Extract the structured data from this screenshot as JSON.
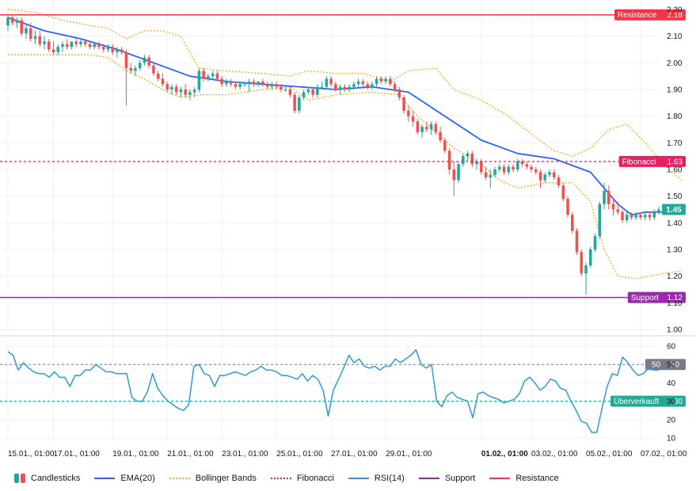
{
  "chart_data": {
    "type": "candlestick",
    "price_axis": {
      "min": 1.0,
      "max": 2.2,
      "ticks": [
        "2.20",
        "2.10",
        "2.00",
        "1.90",
        "1.80",
        "1.70",
        "1.60",
        "1.50",
        "1.40",
        "1.30",
        "1.20",
        "1.10",
        "1.00"
      ]
    },
    "rsi_axis": {
      "min": 5,
      "max": 60,
      "ticks": [
        "60",
        "50",
        "40",
        "30",
        "20",
        "10"
      ]
    },
    "x_axis_labels": [
      {
        "label": "15.01., 01:00",
        "index": 0,
        "bold": false
      },
      {
        "label": "17.01., 01:00",
        "index": 10,
        "bold": false
      },
      {
        "label": "19.01., 01:00",
        "index": 23,
        "bold": false
      },
      {
        "label": "21.01., 01:00",
        "index": 35,
        "bold": false
      },
      {
        "label": "23.01., 01:00",
        "index": 47,
        "bold": false
      },
      {
        "label": "25.01., 01:00",
        "index": 59,
        "bold": false
      },
      {
        "label": "27.01., 01:00",
        "index": 71,
        "bold": false
      },
      {
        "label": "29.01., 01:00",
        "index": 83,
        "bold": false
      },
      {
        "label": "01.02., 01:00",
        "index": 104,
        "bold": true
      },
      {
        "label": "03.02., 01:00",
        "index": 115,
        "bold": false
      },
      {
        "label": "05.02., 01:00",
        "index": 127,
        "bold": false
      },
      {
        "label": "07.02., 01:00",
        "index": 139,
        "bold": false
      }
    ],
    "candles": [
      [
        2.14,
        2.18,
        2.12,
        2.17
      ],
      [
        2.17,
        2.18,
        2.14,
        2.15
      ],
      [
        2.15,
        2.17,
        2.13,
        2.16
      ],
      [
        2.16,
        2.17,
        2.1,
        2.11
      ],
      [
        2.11,
        2.14,
        2.09,
        2.13
      ],
      [
        2.13,
        2.15,
        2.08,
        2.09
      ],
      [
        2.09,
        2.12,
        2.07,
        2.1
      ],
      [
        2.1,
        2.12,
        2.06,
        2.07
      ],
      [
        2.07,
        2.1,
        2.05,
        2.08
      ],
      [
        2.08,
        2.09,
        2.04,
        2.05
      ],
      [
        2.05,
        2.08,
        2.03,
        2.04
      ],
      [
        2.04,
        2.07,
        2.03,
        2.06
      ],
      [
        2.06,
        2.08,
        2.04,
        2.07
      ],
      [
        2.07,
        2.09,
        2.05,
        2.06
      ],
      [
        2.06,
        2.08,
        2.05,
        2.08
      ],
      [
        2.08,
        2.09,
        2.06,
        2.07
      ],
      [
        2.07,
        2.09,
        2.06,
        2.08
      ],
      [
        2.08,
        2.09,
        2.06,
        2.07
      ],
      [
        2.07,
        2.08,
        2.05,
        2.06
      ],
      [
        2.06,
        2.08,
        2.05,
        2.07
      ],
      [
        2.07,
        2.08,
        2.05,
        2.06
      ],
      [
        2.06,
        2.07,
        2.04,
        2.05
      ],
      [
        2.05,
        2.07,
        2.04,
        2.06
      ],
      [
        2.06,
        2.07,
        2.03,
        2.04
      ],
      [
        2.04,
        2.06,
        2.02,
        2.05
      ],
      [
        2.05,
        2.06,
        2.03,
        2.04
      ],
      [
        2.04,
        2.05,
        1.84,
        1.98
      ],
      [
        1.98,
        2.0,
        1.96,
        1.97
      ],
      [
        1.97,
        1.99,
        1.95,
        1.98
      ],
      [
        1.98,
        2.01,
        1.97,
        2.0
      ],
      [
        2.0,
        2.03,
        1.99,
        2.02
      ],
      [
        2.02,
        2.03,
        1.98,
        1.99
      ],
      [
        1.99,
        2.0,
        1.95,
        1.96
      ],
      [
        1.96,
        1.97,
        1.93,
        1.94
      ],
      [
        1.94,
        1.96,
        1.91,
        1.92
      ],
      [
        1.92,
        1.93,
        1.89,
        1.9
      ],
      [
        1.9,
        1.92,
        1.88,
        1.91
      ],
      [
        1.91,
        1.92,
        1.88,
        1.89
      ],
      [
        1.89,
        1.91,
        1.87,
        1.9
      ],
      [
        1.9,
        1.92,
        1.87,
        1.88
      ],
      [
        1.88,
        1.9,
        1.86,
        1.89
      ],
      [
        1.89,
        1.91,
        1.87,
        1.9
      ],
      [
        1.9,
        1.98,
        1.89,
        1.97
      ],
      [
        1.97,
        1.98,
        1.93,
        1.94
      ],
      [
        1.94,
        1.96,
        1.93,
        1.95
      ],
      [
        1.95,
        1.97,
        1.94,
        1.96
      ],
      [
        1.96,
        1.97,
        1.93,
        1.94
      ],
      [
        1.94,
        1.95,
        1.91,
        1.92
      ],
      [
        1.92,
        1.94,
        1.91,
        1.93
      ],
      [
        1.93,
        1.94,
        1.91,
        1.92
      ],
      [
        1.92,
        1.93,
        1.9,
        1.91
      ],
      [
        1.91,
        1.93,
        1.9,
        1.92
      ],
      [
        1.92,
        1.93,
        1.91,
        1.92
      ],
      [
        1.92,
        1.94,
        1.89,
        1.93
      ],
      [
        1.93,
        1.94,
        1.91,
        1.92
      ],
      [
        1.92,
        1.93,
        1.91,
        1.93
      ],
      [
        1.93,
        1.94,
        1.91,
        1.92
      ],
      [
        1.92,
        1.93,
        1.9,
        1.91
      ],
      [
        1.91,
        1.93,
        1.9,
        1.92
      ],
      [
        1.92,
        1.93,
        1.9,
        1.91
      ],
      [
        1.91,
        1.92,
        1.89,
        1.9
      ],
      [
        1.9,
        1.91,
        1.89,
        1.9
      ],
      [
        1.9,
        1.91,
        1.87,
        1.88
      ],
      [
        1.88,
        1.89,
        1.81,
        1.82
      ],
      [
        1.82,
        1.88,
        1.81,
        1.87
      ],
      [
        1.87,
        1.9,
        1.86,
        1.89
      ],
      [
        1.89,
        1.91,
        1.88,
        1.9
      ],
      [
        1.9,
        1.91,
        1.87,
        1.88
      ],
      [
        1.88,
        1.92,
        1.87,
        1.91
      ],
      [
        1.91,
        1.93,
        1.9,
        1.91
      ],
      [
        1.91,
        1.95,
        1.9,
        1.94
      ],
      [
        1.94,
        1.95,
        1.91,
        1.92
      ],
      [
        1.92,
        1.93,
        1.89,
        1.9
      ],
      [
        1.9,
        1.92,
        1.88,
        1.91
      ],
      [
        1.91,
        1.92,
        1.89,
        1.9
      ],
      [
        1.9,
        1.92,
        1.89,
        1.91
      ],
      [
        1.91,
        1.93,
        1.9,
        1.92
      ],
      [
        1.92,
        1.94,
        1.91,
        1.93
      ],
      [
        1.93,
        1.94,
        1.91,
        1.92
      ],
      [
        1.92,
        1.93,
        1.9,
        1.91
      ],
      [
        1.91,
        1.93,
        1.9,
        1.92
      ],
      [
        1.92,
        1.95,
        1.91,
        1.94
      ],
      [
        1.94,
        1.95,
        1.92,
        1.93
      ],
      [
        1.93,
        1.95,
        1.92,
        1.94
      ],
      [
        1.94,
        1.95,
        1.91,
        1.92
      ],
      [
        1.92,
        1.93,
        1.89,
        1.9
      ],
      [
        1.9,
        1.91,
        1.86,
        1.87
      ],
      [
        1.87,
        1.88,
        1.81,
        1.82
      ],
      [
        1.82,
        1.84,
        1.78,
        1.8
      ],
      [
        1.8,
        1.82,
        1.76,
        1.78
      ],
      [
        1.78,
        1.79,
        1.73,
        1.74
      ],
      [
        1.74,
        1.77,
        1.72,
        1.76
      ],
      [
        1.76,
        1.78,
        1.74,
        1.75
      ],
      [
        1.75,
        1.78,
        1.73,
        1.77
      ],
      [
        1.77,
        1.78,
        1.73,
        1.74
      ],
      [
        1.74,
        1.76,
        1.7,
        1.71
      ],
      [
        1.71,
        1.72,
        1.66,
        1.67
      ],
      [
        1.67,
        1.68,
        1.58,
        1.6
      ],
      [
        1.6,
        1.63,
        1.5,
        1.56
      ],
      [
        1.56,
        1.63,
        1.55,
        1.62
      ],
      [
        1.62,
        1.66,
        1.61,
        1.65
      ],
      [
        1.65,
        1.67,
        1.63,
        1.66
      ],
      [
        1.66,
        1.67,
        1.61,
        1.62
      ],
      [
        1.62,
        1.64,
        1.6,
        1.63
      ],
      [
        1.63,
        1.64,
        1.58,
        1.59
      ],
      [
        1.59,
        1.61,
        1.56,
        1.57
      ],
      [
        1.57,
        1.6,
        1.53,
        1.58
      ],
      [
        1.58,
        1.61,
        1.57,
        1.6
      ],
      [
        1.6,
        1.62,
        1.59,
        1.61
      ],
      [
        1.61,
        1.62,
        1.58,
        1.59
      ],
      [
        1.59,
        1.62,
        1.58,
        1.61
      ],
      [
        1.61,
        1.62,
        1.59,
        1.6
      ],
      [
        1.6,
        1.64,
        1.59,
        1.63
      ],
      [
        1.63,
        1.64,
        1.61,
        1.62
      ],
      [
        1.62,
        1.63,
        1.6,
        1.61
      ],
      [
        1.61,
        1.62,
        1.59,
        1.6
      ],
      [
        1.6,
        1.61,
        1.58,
        1.59
      ],
      [
        1.59,
        1.6,
        1.53,
        1.56
      ],
      [
        1.56,
        1.59,
        1.55,
        1.58
      ],
      [
        1.58,
        1.6,
        1.57,
        1.59
      ],
      [
        1.59,
        1.6,
        1.56,
        1.57
      ],
      [
        1.57,
        1.58,
        1.53,
        1.54
      ],
      [
        1.54,
        1.55,
        1.48,
        1.49
      ],
      [
        1.49,
        1.5,
        1.42,
        1.43
      ],
      [
        1.43,
        1.44,
        1.36,
        1.37
      ],
      [
        1.37,
        1.38,
        1.28,
        1.29
      ],
      [
        1.29,
        1.3,
        1.2,
        1.21
      ],
      [
        1.21,
        1.25,
        1.13,
        1.24
      ],
      [
        1.24,
        1.31,
        1.23,
        1.3
      ],
      [
        1.3,
        1.36,
        1.29,
        1.35
      ],
      [
        1.35,
        1.48,
        1.34,
        1.47
      ],
      [
        1.47,
        1.55,
        1.45,
        1.52
      ],
      [
        1.52,
        1.54,
        1.45,
        1.47
      ],
      [
        1.47,
        1.49,
        1.43,
        1.45
      ],
      [
        1.45,
        1.48,
        1.43,
        1.44
      ],
      [
        1.44,
        1.45,
        1.4,
        1.41
      ],
      [
        1.41,
        1.44,
        1.4,
        1.43
      ],
      [
        1.43,
        1.44,
        1.41,
        1.42
      ],
      [
        1.42,
        1.44,
        1.41,
        1.43
      ],
      [
        1.43,
        1.44,
        1.41,
        1.42
      ],
      [
        1.42,
        1.44,
        1.41,
        1.43
      ],
      [
        1.43,
        1.44,
        1.41,
        1.42
      ],
      [
        1.42,
        1.45,
        1.41,
        1.44
      ],
      [
        1.44,
        1.46,
        1.43,
        1.45
      ]
    ],
    "ema20": [
      [
        0,
        2.17
      ],
      [
        8,
        2.12
      ],
      [
        16,
        2.09
      ],
      [
        24,
        2.05
      ],
      [
        32,
        2.0
      ],
      [
        40,
        1.95
      ],
      [
        48,
        1.93
      ],
      [
        56,
        1.92
      ],
      [
        64,
        1.91
      ],
      [
        72,
        1.9
      ],
      [
        80,
        1.91
      ],
      [
        88,
        1.89
      ],
      [
        96,
        1.8
      ],
      [
        104,
        1.71
      ],
      [
        112,
        1.66
      ],
      [
        120,
        1.64
      ],
      [
        128,
        1.59
      ],
      [
        134,
        1.47
      ],
      [
        137,
        1.43
      ],
      [
        140,
        1.44
      ],
      [
        148,
        1.44
      ]
    ],
    "bollinger_upper": [
      [
        0,
        2.2
      ],
      [
        6,
        2.19
      ],
      [
        12,
        2.16
      ],
      [
        18,
        2.14
      ],
      [
        22,
        2.13
      ],
      [
        26,
        2.09
      ],
      [
        30,
        2.12
      ],
      [
        34,
        2.12
      ],
      [
        38,
        2.1
      ],
      [
        42,
        1.98
      ],
      [
        48,
        1.97
      ],
      [
        56,
        1.96
      ],
      [
        62,
        1.95
      ],
      [
        66,
        1.97
      ],
      [
        72,
        1.96
      ],
      [
        78,
        1.96
      ],
      [
        84,
        1.93
      ],
      [
        88,
        1.97
      ],
      [
        94,
        1.98
      ],
      [
        98,
        1.9
      ],
      [
        104,
        1.86
      ],
      [
        110,
        1.8
      ],
      [
        116,
        1.72
      ],
      [
        120,
        1.67
      ],
      [
        124,
        1.65
      ],
      [
        128,
        1.68
      ],
      [
        132,
        1.75
      ],
      [
        136,
        1.77
      ],
      [
        140,
        1.7
      ],
      [
        144,
        1.62
      ],
      [
        148,
        1.56
      ]
    ],
    "bollinger_lower": [
      [
        0,
        2.03
      ],
      [
        6,
        2.03
      ],
      [
        12,
        2.03
      ],
      [
        18,
        2.03
      ],
      [
        22,
        2.02
      ],
      [
        26,
        1.97
      ],
      [
        30,
        1.94
      ],
      [
        34,
        1.9
      ],
      [
        38,
        1.87
      ],
      [
        42,
        1.88
      ],
      [
        48,
        1.88
      ],
      [
        56,
        1.9
      ],
      [
        62,
        1.91
      ],
      [
        66,
        1.86
      ],
      [
        72,
        1.88
      ],
      [
        80,
        1.89
      ],
      [
        86,
        1.88
      ],
      [
        90,
        1.8
      ],
      [
        94,
        1.74
      ],
      [
        98,
        1.68
      ],
      [
        104,
        1.62
      ],
      [
        108,
        1.56
      ],
      [
        112,
        1.53
      ],
      [
        118,
        1.55
      ],
      [
        124,
        1.55
      ],
      [
        128,
        1.48
      ],
      [
        131,
        1.3
      ],
      [
        134,
        1.2
      ],
      [
        138,
        1.19
      ],
      [
        144,
        1.21
      ],
      [
        148,
        1.22
      ]
    ],
    "rsi14": [
      57,
      55,
      47,
      51,
      48,
      46,
      45,
      45,
      43,
      46,
      43,
      43,
      38,
      44,
      44,
      47,
      47,
      50,
      48,
      46,
      46,
      45,
      45,
      45,
      32,
      30,
      30,
      35,
      45,
      37,
      33,
      30,
      28,
      26,
      25,
      28,
      49,
      50,
      45,
      44,
      38,
      44,
      44,
      45,
      46,
      45,
      44,
      46,
      47,
      49,
      47,
      47,
      46,
      44,
      44,
      43,
      42,
      45,
      41,
      44,
      42,
      36,
      22,
      36,
      42,
      48,
      55,
      51,
      53,
      49,
      48,
      49,
      47,
      49,
      49,
      53,
      51,
      53,
      55,
      58,
      50,
      48,
      50,
      30,
      27,
      33,
      35,
      32,
      31,
      30,
      21,
      34,
      35,
      33,
      32,
      31,
      29,
      30,
      31,
      34,
      41,
      43,
      40,
      36,
      38,
      42,
      41,
      37,
      36,
      30,
      25,
      19,
      18,
      13,
      13,
      26,
      38,
      45,
      44,
      54,
      51,
      47,
      44,
      45,
      48,
      47,
      47
    ],
    "levels": {
      "resistance": {
        "value": 2.18,
        "label": "Resistance",
        "value_label": "2.18",
        "color": "#F23645"
      },
      "fibonacci": {
        "value": 1.63,
        "label": "Fibonacci",
        "value_label": "1.63",
        "color": "#E91E63"
      },
      "support": {
        "value": 1.12,
        "label": "Support",
        "value_label": "1.12",
        "color": "#9C27B0"
      }
    },
    "last_price": {
      "value": 1.45,
      "label": "1.45",
      "color": "#22AB94"
    },
    "rsi_levels": {
      "fifty": {
        "value": 50,
        "label": "50",
        "value_label": "50",
        "color": "#787B86"
      },
      "oversold": {
        "value": 30,
        "label": "Überverkauft",
        "value_label": "30",
        "color": "#22AB94"
      }
    },
    "colors": {
      "up": "#26A69A",
      "down": "#EF5350",
      "ema": "#2962FF",
      "bollinger": "#F9A825",
      "rsi": "#2E9AD6",
      "grid": "#EFF2F5"
    },
    "legend": [
      {
        "label": "Candlesticks",
        "swatch": "candle"
      },
      {
        "label": "EMA(20)",
        "swatch": "line",
        "color": "#2962FF"
      },
      {
        "label": "Bollinger Bands",
        "swatch": "dot",
        "color": "#F9A825"
      },
      {
        "label": "Fibonacci",
        "swatch": "dot",
        "color": "#E91E63"
      },
      {
        "label": "RSI(14)",
        "swatch": "line",
        "color": "#2E9AD6"
      },
      {
        "label": "Support",
        "swatch": "line",
        "color": "#9C27B0"
      },
      {
        "label": "Resistance",
        "swatch": "line",
        "color": "#F23645"
      }
    ]
  }
}
